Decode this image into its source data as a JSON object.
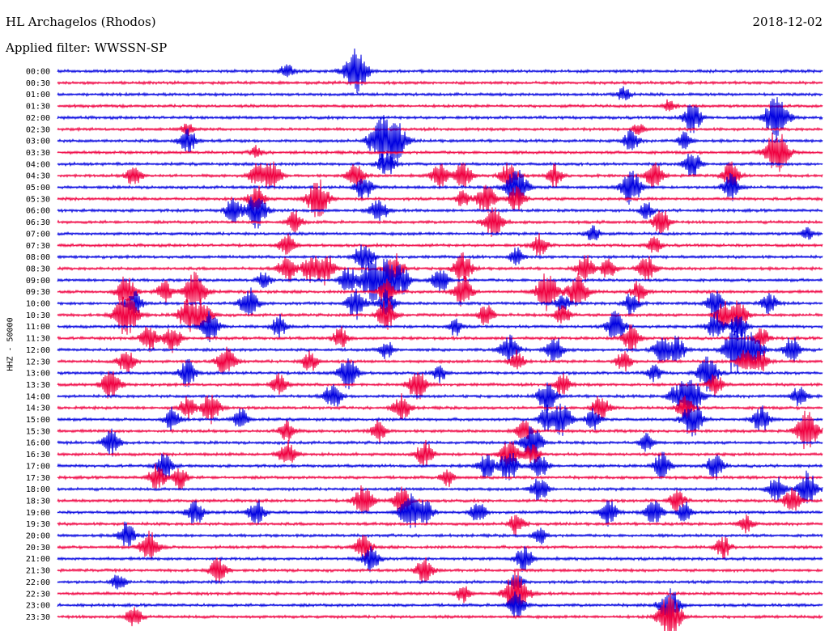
{
  "header": {
    "station": "HL Archagelos (Rhodos)",
    "date": "2018-12-02",
    "filter": "Applied filter: WWSSN-SP"
  },
  "axis": {
    "ylabel": "HHZ - 50000"
  },
  "colors": {
    "blue": "#0000e0",
    "red": "#f00040",
    "text": "#000000"
  },
  "chart_data": {
    "type": "line",
    "title": "HL Archagelos (Rhodos)",
    "ylabel": "HHZ - 50000",
    "xlabel": "",
    "legend": "none",
    "grid": false,
    "rows": [
      {
        "time": "00:00",
        "color": "blue",
        "events": [
          [
            0.39,
            1.0
          ],
          [
            0.3,
            0.35
          ]
        ]
      },
      {
        "time": "00:30",
        "color": "red",
        "events": []
      },
      {
        "time": "01:00",
        "color": "blue",
        "events": [
          [
            0.74,
            0.35
          ]
        ]
      },
      {
        "time": "01:30",
        "color": "red",
        "events": [
          [
            0.8,
            0.3
          ]
        ]
      },
      {
        "time": "02:00",
        "color": "blue",
        "events": [
          [
            0.83,
            0.7
          ],
          [
            0.94,
            1.0
          ]
        ]
      },
      {
        "time": "02:30",
        "color": "red",
        "events": [
          [
            0.17,
            0.3
          ],
          [
            0.76,
            0.3
          ]
        ]
      },
      {
        "time": "03:00",
        "color": "blue",
        "events": [
          [
            0.17,
            0.6
          ],
          [
            0.42,
            0.9
          ],
          [
            0.44,
            1.0
          ],
          [
            0.75,
            0.5
          ],
          [
            0.82,
            0.4
          ]
        ]
      },
      {
        "time": "03:30",
        "color": "red",
        "events": [
          [
            0.26,
            0.3
          ],
          [
            0.94,
            1.0
          ]
        ]
      },
      {
        "time": "04:00",
        "color": "blue",
        "events": [
          [
            0.43,
            0.6
          ],
          [
            0.83,
            0.6
          ]
        ]
      },
      {
        "time": "04:30",
        "color": "red",
        "events": [
          [
            0.1,
            0.5
          ],
          [
            0.26,
            0.5
          ],
          [
            0.28,
            0.7
          ],
          [
            0.39,
            0.6
          ],
          [
            0.5,
            0.6
          ],
          [
            0.53,
            0.6
          ],
          [
            0.59,
            0.6
          ],
          [
            0.65,
            0.5
          ],
          [
            0.78,
            0.6
          ],
          [
            0.88,
            0.6
          ]
        ]
      },
      {
        "time": "05:00",
        "color": "blue",
        "events": [
          [
            0.4,
            0.6
          ],
          [
            0.6,
            0.9
          ],
          [
            0.75,
            0.8
          ],
          [
            0.88,
            0.6
          ]
        ]
      },
      {
        "time": "05:30",
        "color": "red",
        "events": [
          [
            0.26,
            0.6
          ],
          [
            0.34,
            0.9
          ],
          [
            0.53,
            0.4
          ],
          [
            0.56,
            0.7
          ],
          [
            0.6,
            0.6
          ]
        ]
      },
      {
        "time": "06:00",
        "color": "blue",
        "events": [
          [
            0.23,
            0.6
          ],
          [
            0.26,
            0.8
          ],
          [
            0.42,
            0.6
          ],
          [
            0.77,
            0.4
          ]
        ]
      },
      {
        "time": "06:30",
        "color": "red",
        "events": [
          [
            0.31,
            0.5
          ],
          [
            0.57,
            0.7
          ],
          [
            0.79,
            0.6
          ]
        ]
      },
      {
        "time": "07:00",
        "color": "blue",
        "events": [
          [
            0.7,
            0.4
          ],
          [
            0.98,
            0.3
          ]
        ]
      },
      {
        "time": "07:30",
        "color": "red",
        "events": [
          [
            0.3,
            0.5
          ],
          [
            0.63,
            0.5
          ],
          [
            0.78,
            0.4
          ]
        ]
      },
      {
        "time": "08:00",
        "color": "blue",
        "events": [
          [
            0.4,
            0.7
          ],
          [
            0.6,
            0.4
          ]
        ]
      },
      {
        "time": "08:30",
        "color": "red",
        "events": [
          [
            0.3,
            0.6
          ],
          [
            0.33,
            0.6
          ],
          [
            0.35,
            0.7
          ],
          [
            0.44,
            0.7
          ],
          [
            0.53,
            0.7
          ],
          [
            0.69,
            0.6
          ],
          [
            0.72,
            0.5
          ],
          [
            0.77,
            0.6
          ]
        ]
      },
      {
        "time": "09:00",
        "color": "blue",
        "events": [
          [
            0.27,
            0.4
          ],
          [
            0.38,
            0.6
          ],
          [
            0.41,
            0.9
          ],
          [
            0.43,
            0.8
          ],
          [
            0.45,
            0.6
          ],
          [
            0.5,
            0.6
          ]
        ]
      },
      {
        "time": "09:30",
        "color": "red",
        "events": [
          [
            0.09,
            0.7
          ],
          [
            0.14,
            0.5
          ],
          [
            0.18,
            0.9
          ],
          [
            0.43,
            0.6
          ],
          [
            0.53,
            0.7
          ],
          [
            0.64,
            0.9
          ],
          [
            0.68,
            0.8
          ],
          [
            0.76,
            0.5
          ]
        ]
      },
      {
        "time": "10:00",
        "color": "blue",
        "events": [
          [
            0.1,
            0.6
          ],
          [
            0.25,
            0.7
          ],
          [
            0.39,
            0.7
          ],
          [
            0.43,
            0.6
          ],
          [
            0.66,
            0.4
          ],
          [
            0.75,
            0.5
          ],
          [
            0.86,
            0.6
          ],
          [
            0.93,
            0.5
          ]
        ]
      },
      {
        "time": "10:30",
        "color": "red",
        "events": [
          [
            0.09,
            1.0
          ],
          [
            0.17,
            0.7
          ],
          [
            0.19,
            0.7
          ],
          [
            0.43,
            0.7
          ],
          [
            0.56,
            0.5
          ],
          [
            0.66,
            0.5
          ],
          [
            0.87,
            0.6
          ],
          [
            0.89,
            0.7
          ]
        ]
      },
      {
        "time": "11:00",
        "color": "blue",
        "events": [
          [
            0.2,
            0.7
          ],
          [
            0.29,
            0.5
          ],
          [
            0.52,
            0.4
          ],
          [
            0.73,
            0.7
          ],
          [
            0.86,
            0.6
          ],
          [
            0.89,
            0.6
          ]
        ]
      },
      {
        "time": "11:30",
        "color": "red",
        "events": [
          [
            0.12,
            0.6
          ],
          [
            0.15,
            0.6
          ],
          [
            0.37,
            0.5
          ],
          [
            0.75,
            0.6
          ],
          [
            0.92,
            0.5
          ]
        ]
      },
      {
        "time": "12:00",
        "color": "blue",
        "events": [
          [
            0.43,
            0.4
          ],
          [
            0.59,
            0.7
          ],
          [
            0.65,
            0.6
          ],
          [
            0.79,
            0.6
          ],
          [
            0.81,
            0.6
          ],
          [
            0.88,
            0.7
          ],
          [
            0.89,
            0.7
          ],
          [
            0.91,
            0.8
          ],
          [
            0.96,
            0.6
          ]
        ]
      },
      {
        "time": "12:30",
        "color": "red",
        "events": [
          [
            0.09,
            0.6
          ],
          [
            0.22,
            0.7
          ],
          [
            0.33,
            0.5
          ],
          [
            0.6,
            0.5
          ],
          [
            0.74,
            0.5
          ],
          [
            0.9,
            0.6
          ],
          [
            0.92,
            0.5
          ]
        ]
      },
      {
        "time": "13:00",
        "color": "blue",
        "events": [
          [
            0.17,
            0.6
          ],
          [
            0.38,
            0.7
          ],
          [
            0.5,
            0.4
          ],
          [
            0.78,
            0.4
          ],
          [
            0.85,
            0.8
          ]
        ]
      },
      {
        "time": "13:30",
        "color": "red",
        "events": [
          [
            0.07,
            0.7
          ],
          [
            0.29,
            0.5
          ],
          [
            0.47,
            0.7
          ],
          [
            0.66,
            0.5
          ],
          [
            0.86,
            0.5
          ]
        ]
      },
      {
        "time": "14:00",
        "color": "blue",
        "events": [
          [
            0.36,
            0.6
          ],
          [
            0.64,
            0.7
          ],
          [
            0.81,
            0.6
          ],
          [
            0.83,
            0.8
          ],
          [
            0.97,
            0.5
          ]
        ]
      },
      {
        "time": "14:30",
        "color": "red",
        "events": [
          [
            0.17,
            0.5
          ],
          [
            0.2,
            0.7
          ],
          [
            0.45,
            0.6
          ],
          [
            0.71,
            0.6
          ],
          [
            0.82,
            0.6
          ]
        ]
      },
      {
        "time": "15:00",
        "color": "blue",
        "events": [
          [
            0.15,
            0.5
          ],
          [
            0.24,
            0.5
          ],
          [
            0.64,
            0.6
          ],
          [
            0.66,
            0.7
          ],
          [
            0.7,
            0.5
          ],
          [
            0.83,
            0.8
          ],
          [
            0.92,
            0.6
          ]
        ]
      },
      {
        "time": "15:30",
        "color": "red",
        "events": [
          [
            0.3,
            0.5
          ],
          [
            0.42,
            0.5
          ],
          [
            0.61,
            0.5
          ],
          [
            0.98,
            0.9
          ]
        ]
      },
      {
        "time": "16:00",
        "color": "blue",
        "events": [
          [
            0.07,
            0.6
          ],
          [
            0.62,
            0.8
          ],
          [
            0.77,
            0.4
          ]
        ]
      },
      {
        "time": "16:30",
        "color": "red",
        "events": [
          [
            0.3,
            0.6
          ],
          [
            0.48,
            0.6
          ],
          [
            0.59,
            0.7
          ],
          [
            0.62,
            0.5
          ]
        ]
      },
      {
        "time": "17:00",
        "color": "blue",
        "events": [
          [
            0.14,
            0.6
          ],
          [
            0.56,
            0.6
          ],
          [
            0.59,
            0.7
          ],
          [
            0.63,
            0.6
          ],
          [
            0.79,
            0.6
          ],
          [
            0.86,
            0.6
          ]
        ]
      },
      {
        "time": "17:30",
        "color": "red",
        "events": [
          [
            0.13,
            0.6
          ],
          [
            0.16,
            0.5
          ],
          [
            0.51,
            0.4
          ]
        ]
      },
      {
        "time": "18:00",
        "color": "blue",
        "events": [
          [
            0.63,
            0.6
          ],
          [
            0.94,
            0.6
          ],
          [
            0.98,
            0.8
          ]
        ]
      },
      {
        "time": "18:30",
        "color": "red",
        "events": [
          [
            0.4,
            0.7
          ],
          [
            0.45,
            0.6
          ],
          [
            0.81,
            0.5
          ],
          [
            0.96,
            0.6
          ]
        ]
      },
      {
        "time": "19:00",
        "color": "blue",
        "events": [
          [
            0.18,
            0.6
          ],
          [
            0.26,
            0.6
          ],
          [
            0.46,
            0.8
          ],
          [
            0.48,
            0.6
          ],
          [
            0.55,
            0.5
          ],
          [
            0.72,
            0.6
          ],
          [
            0.78,
            0.6
          ],
          [
            0.82,
            0.5
          ]
        ]
      },
      {
        "time": "19:30",
        "color": "red",
        "events": [
          [
            0.6,
            0.5
          ],
          [
            0.9,
            0.4
          ]
        ]
      },
      {
        "time": "20:00",
        "color": "blue",
        "events": [
          [
            0.09,
            0.6
          ],
          [
            0.63,
            0.4
          ]
        ]
      },
      {
        "time": "20:30",
        "color": "red",
        "events": [
          [
            0.12,
            0.7
          ],
          [
            0.4,
            0.6
          ],
          [
            0.87,
            0.5
          ]
        ]
      },
      {
        "time": "21:00",
        "color": "blue",
        "events": [
          [
            0.41,
            0.6
          ],
          [
            0.61,
            0.6
          ]
        ]
      },
      {
        "time": "21:30",
        "color": "red",
        "events": [
          [
            0.21,
            0.6
          ],
          [
            0.48,
            0.6
          ]
        ]
      },
      {
        "time": "22:00",
        "color": "blue",
        "events": [
          [
            0.08,
            0.4
          ],
          [
            0.6,
            0.4
          ]
        ]
      },
      {
        "time": "22:30",
        "color": "red",
        "events": [
          [
            0.6,
            1.0
          ],
          [
            0.53,
            0.4
          ]
        ]
      },
      {
        "time": "23:00",
        "color": "blue",
        "events": [
          [
            0.6,
            0.6
          ],
          [
            0.8,
            0.8
          ]
        ]
      },
      {
        "time": "23:30",
        "color": "red",
        "events": [
          [
            0.1,
            0.5
          ],
          [
            0.8,
            1.0
          ]
        ]
      }
    ]
  }
}
